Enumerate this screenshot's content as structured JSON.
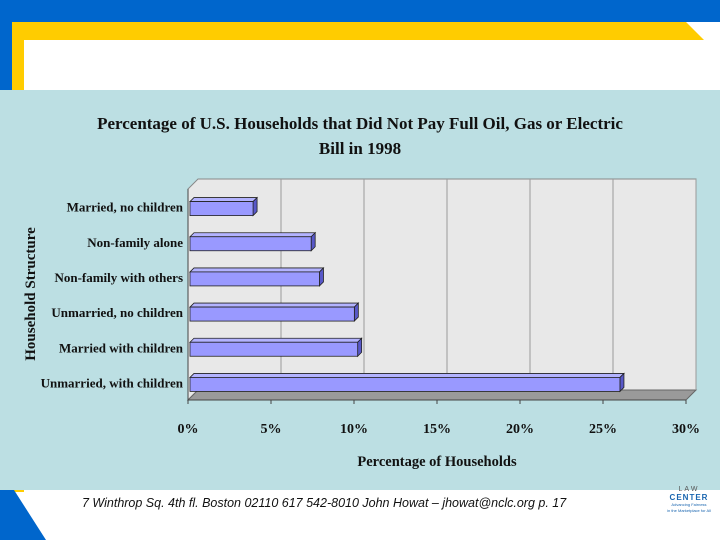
{
  "footer": {
    "text": "7 Winthrop Sq. 4th fl. Boston 02110  617 542-8010  John Howat – jhowat@nclc.org  p. 17"
  },
  "logo": {
    "line1": "LAW",
    "line2": "CENTER",
    "tagline1": "Advancing Fairness",
    "tagline2": "in the Marketplace for All"
  },
  "colors": {
    "bar_fill": "#9999ff",
    "bar_top": "#b3b3ff",
    "bar_side": "#5858c8",
    "panel_bg": "#bcdfe3",
    "frame_yellow": "#ffcc00",
    "frame_blue": "#0066cc"
  },
  "chart_data": {
    "type": "bar",
    "orientation": "horizontal",
    "title_line1": "Percentage of U.S. Households that Did Not Pay Full Oil, Gas or Electric",
    "title_line2": "Bill in 1998",
    "xlabel": "Percentage of Households",
    "ylabel": "Household Structure",
    "categories": [
      "Married, no children",
      "Non-family alone",
      "Non-family with others",
      "Unmarried, no children",
      "Married with children",
      "Unmarried, with children"
    ],
    "values": [
      3.8,
      7.3,
      7.8,
      9.9,
      10.1,
      25.9
    ],
    "xlim": [
      0,
      30
    ],
    "xticks": [
      0,
      5,
      10,
      15,
      20,
      25,
      30
    ],
    "xtick_labels": [
      "0%",
      "5%",
      "10%",
      "15%",
      "20%",
      "25%",
      "30%"
    ],
    "grid": true,
    "legend": "none"
  }
}
